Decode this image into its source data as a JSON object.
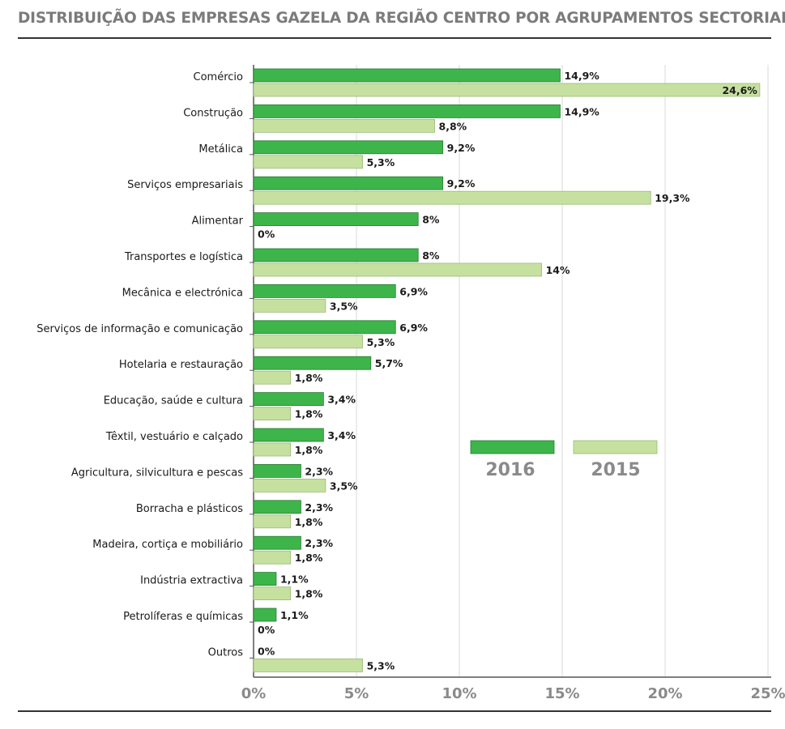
{
  "title": "DISTRIBUIÇÃO DAS EMPRESAS GAZELA DA REGIÃO CENTRO POR AGRUPAMENTOS SECTORIAIS",
  "colors": {
    "s2016": "#3db54a",
    "s2016_border": "#2a7a34",
    "s2015": "#c6e0a0",
    "s2015_border": "#9abb7a",
    "grid": "#d9d9d9",
    "axis": "#555555"
  },
  "chart_data": {
    "type": "bar",
    "orientation": "horizontal",
    "categories": [
      "Comércio",
      "Construção",
      "Metálica",
      "Serviços empresariais",
      "Alimentar",
      "Transportes e logística",
      "Mecânica e electrónica",
      "Serviços de informação e comunicação",
      "Hotelaria e restauração",
      "Educação, saúde e cultura",
      "Têxtil, vestuário e calçado",
      "Agricultura, silvicultura e pescas",
      "Borracha e plásticos",
      "Madeira, cortiça e mobiliário",
      "Indústria extractiva",
      "Petrolíferas e químicas",
      "Outros"
    ],
    "series": [
      {
        "name": "2016",
        "values": [
          14.9,
          14.9,
          9.2,
          9.2,
          8,
          8,
          6.9,
          6.9,
          5.7,
          3.4,
          3.4,
          2.3,
          2.3,
          2.3,
          1.1,
          1.1,
          0
        ],
        "labels": [
          "14,9%",
          "14,9%",
          "9,2%",
          "9,2%",
          "8%",
          "8%",
          "6,9%",
          "6,9%",
          "5,7%",
          "3,4%",
          "3,4%",
          "2,3%",
          "2,3%",
          "2,3%",
          "1,1%",
          "1,1%",
          "0%"
        ]
      },
      {
        "name": "2015",
        "values": [
          24.6,
          8.8,
          5.3,
          19.3,
          0,
          14,
          3.5,
          5.3,
          1.8,
          1.8,
          1.8,
          3.5,
          1.8,
          1.8,
          1.8,
          0,
          5.3
        ],
        "labels": [
          "24,6%",
          "8,8%",
          "5,3%",
          "19,3%",
          "0%",
          "14%",
          "3,5%",
          "5,3%",
          "1,8%",
          "1,8%",
          "1,8%",
          "3,5%",
          "1,8%",
          "1,8%",
          "1,8%",
          "0%",
          "5,3%"
        ]
      }
    ],
    "xlim": [
      0,
      25
    ],
    "ticks": [
      0,
      5,
      10,
      15,
      20,
      25
    ],
    "tick_labels": [
      "0%",
      "5%",
      "10%",
      "15%",
      "20%",
      "25%"
    ],
    "grid": true,
    "legend_position": "center-right"
  }
}
